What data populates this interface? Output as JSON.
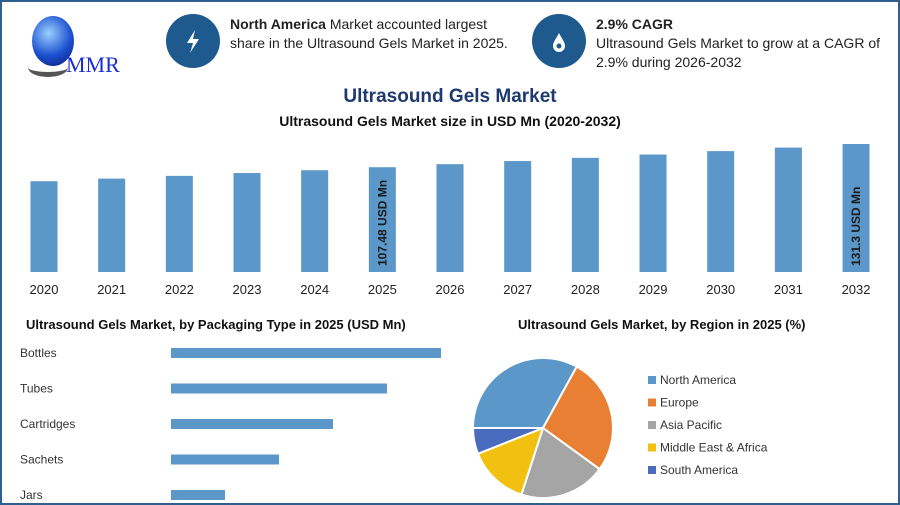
{
  "logo": {
    "text": "MMR"
  },
  "info_cards": [
    {
      "icon": "lightning-icon",
      "bold": "North America",
      "text": " Market accounted largest share in the Ultrasound Gels Market in 2025."
    },
    {
      "icon": "drop-icon",
      "bold": "2.9% CAGR",
      "text": "Ultrasound Gels Market to grow at a CAGR of 2.9% during 2026-2032"
    }
  ],
  "title": "Ultrasound Gels Market",
  "colors": {
    "bar": "#5b97c9",
    "frame": "#2f5f8f",
    "icon_circle": "#1f5a8f",
    "title": "#1f3a6e"
  },
  "chart_data": [
    {
      "type": "bar",
      "title": "Ultrasound Gels Market size in USD Mn (2020-2032)",
      "categories": [
        "2020",
        "2021",
        "2022",
        "2023",
        "2024",
        "2025",
        "2026",
        "2027",
        "2028",
        "2029",
        "2030",
        "2031",
        "2032"
      ],
      "values": [
        93.1,
        95.8,
        98.6,
        101.5,
        104.4,
        107.48,
        110.6,
        113.8,
        117.1,
        120.5,
        124.0,
        127.6,
        131.3
      ],
      "data_labels": {
        "2025": "107.48 USD Mn",
        "2032": "131.3 USD Mn"
      },
      "ylim": [
        0,
        135
      ],
      "grid": false
    },
    {
      "type": "bar",
      "orientation": "horizontal",
      "title": "Ultrasound Gels Market, by Packaging Type in 2025 (USD Mn)",
      "categories": [
        "Bottles",
        "Tubes",
        "Cartridges",
        "Sachets",
        "Jars"
      ],
      "values": [
        5,
        4,
        3,
        2,
        1
      ],
      "grid": false
    },
    {
      "type": "pie",
      "title": "Ultrasound Gels Market, by Region in 2025 (%)",
      "labels": [
        "North America",
        "Europe",
        "Asia Pacific",
        "Middle East & Africa",
        "South America"
      ],
      "values": [
        33,
        27,
        20,
        14,
        6
      ],
      "colors": [
        "#5b97c9",
        "#e97f33",
        "#a5a5a5",
        "#f2c010",
        "#4a6cbf"
      ],
      "legend": "right"
    }
  ]
}
